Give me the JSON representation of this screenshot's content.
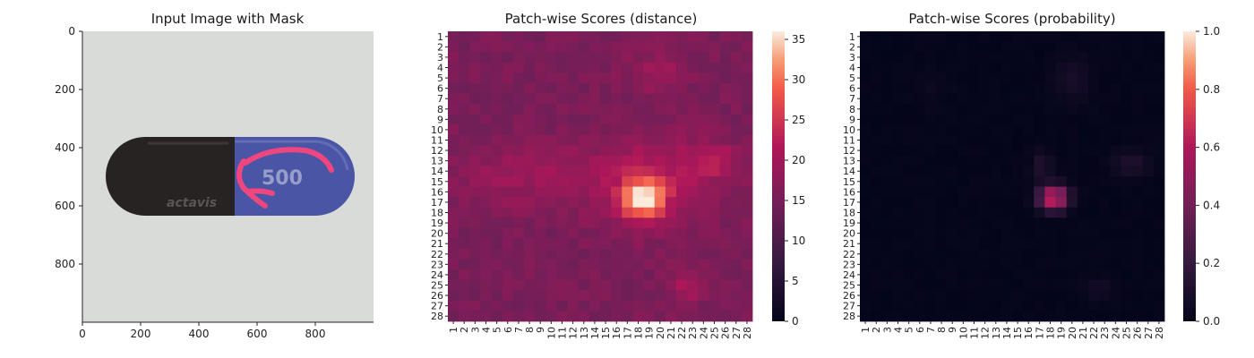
{
  "chart_data": [
    {
      "type": "image",
      "title": "Input Image with Mask",
      "xlim": [
        0,
        1000
      ],
      "ylim": [
        1000,
        0
      ],
      "x_ticks": [
        "0",
        "200",
        "400",
        "600",
        "800"
      ],
      "y_ticks": [
        "0",
        "200",
        "400",
        "600",
        "800"
      ],
      "image_content": {
        "capsule_left_color": "#2a2624",
        "capsule_right_color": "#4b56a6",
        "background_color": "#d9dbd9",
        "mask_color": "#f0467f",
        "capsule_print_left": "actavis",
        "capsule_print_right": "500"
      }
    },
    {
      "type": "heatmap",
      "title": "Patch-wise Scores (distance)",
      "rows": 28,
      "cols": 28,
      "row_labels": [
        "1",
        "2",
        "3",
        "4",
        "5",
        "6",
        "7",
        "8",
        "9",
        "10",
        "11",
        "12",
        "13",
        "14",
        "15",
        "16",
        "17",
        "18",
        "19",
        "20",
        "21",
        "22",
        "23",
        "24",
        "25",
        "26",
        "27",
        "28"
      ],
      "col_labels": [
        "1",
        "2",
        "3",
        "4",
        "5",
        "6",
        "7",
        "8",
        "9",
        "10",
        "11",
        "12",
        "13",
        "14",
        "15",
        "16",
        "17",
        "18",
        "19",
        "20",
        "21",
        "22",
        "23",
        "24",
        "25",
        "26",
        "27",
        "28"
      ],
      "colorbar": {
        "min": 0,
        "max": 36,
        "ticks": [
          "0",
          "5",
          "10",
          "15",
          "20",
          "25",
          "30",
          "35"
        ]
      },
      "values_description": "background ~13-17; band rows 12-20 elevated ~18-22; hotspot at rows 15-18, cols 17-20 peaking ~35"
    },
    {
      "type": "heatmap",
      "title": "Patch-wise Scores (probability)",
      "rows": 28,
      "cols": 28,
      "row_labels": [
        "1",
        "2",
        "3",
        "4",
        "5",
        "6",
        "7",
        "8",
        "9",
        "10",
        "11",
        "12",
        "13",
        "14",
        "15",
        "16",
        "17",
        "18",
        "19",
        "20",
        "21",
        "22",
        "23",
        "24",
        "25",
        "26",
        "27",
        "28"
      ],
      "col_labels": [
        "1",
        "2",
        "3",
        "4",
        "5",
        "6",
        "7",
        "8",
        "9",
        "10",
        "11",
        "12",
        "13",
        "14",
        "15",
        "16",
        "17",
        "18",
        "19",
        "20",
        "21",
        "22",
        "23",
        "24",
        "25",
        "26",
        "27",
        "28"
      ],
      "colorbar": {
        "min": 0,
        "max": 1,
        "ticks": [
          "0.0",
          "0.2",
          "0.4",
          "0.6",
          "0.8",
          "1.0"
        ]
      },
      "values_description": "near 0 everywhere; hotspot at rows 16-18, cols 17-19 peaking ~0.7"
    }
  ]
}
